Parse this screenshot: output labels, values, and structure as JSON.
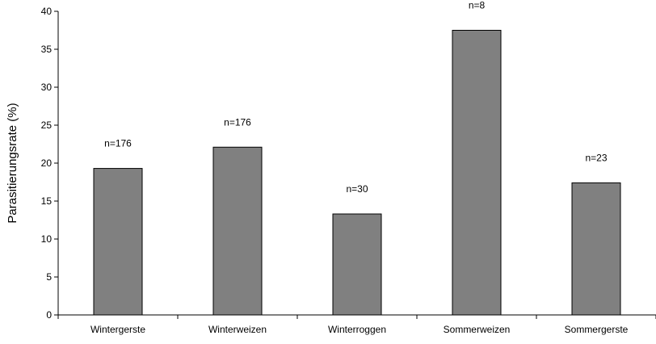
{
  "chart_data": {
    "type": "bar",
    "title": "",
    "xlabel": "",
    "ylabel": "Parasitierungsrate (%)",
    "categories": [
      "Wintergerste",
      "Winterweizen",
      "Winterroggen",
      "Sommerweizen",
      "Sommergerste"
    ],
    "values": [
      19.3,
      22.1,
      13.3,
      37.5,
      17.4
    ],
    "data_labels": [
      "n=176",
      "n=176",
      "n=30",
      "n=8",
      "n=23"
    ],
    "ylim": [
      0,
      40
    ],
    "yticks": [
      0,
      5,
      10,
      15,
      20,
      25,
      30,
      35,
      40
    ],
    "grid": false,
    "legend": "none",
    "bar_color": "#808080",
    "bar_edge_color": "#000000"
  }
}
